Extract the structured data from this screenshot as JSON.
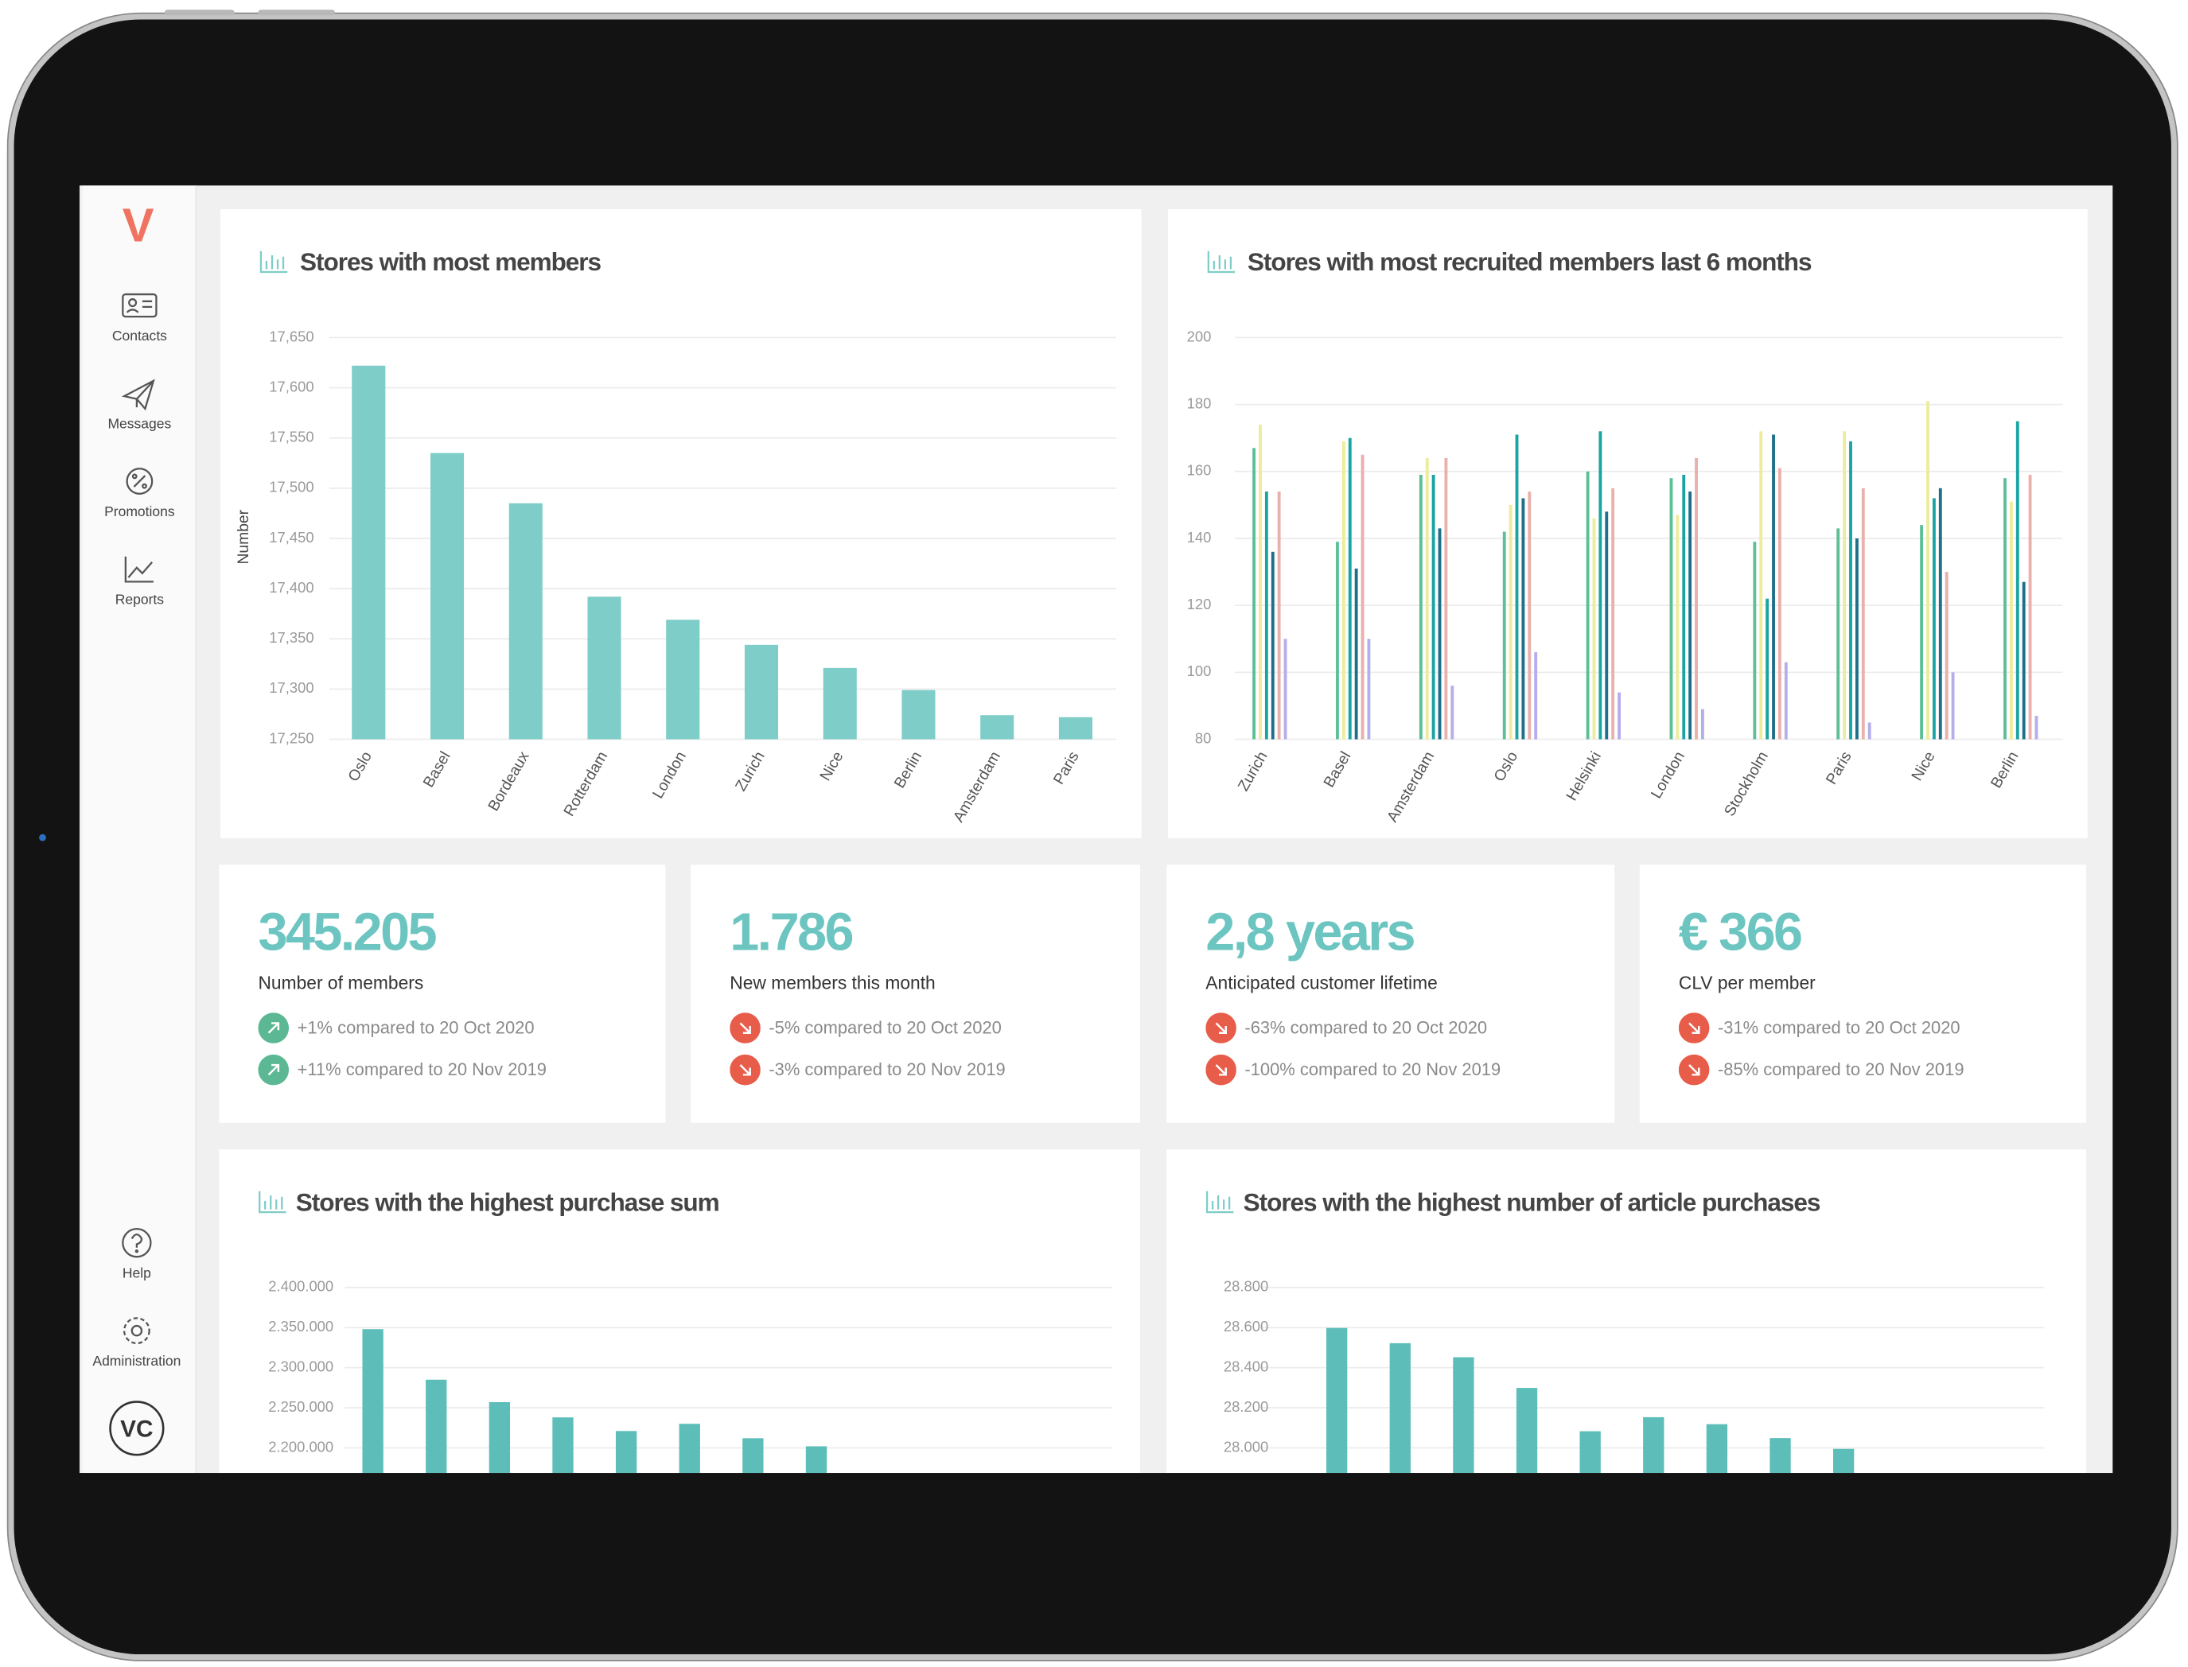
{
  "sidebar": {
    "logo": "V",
    "nav": [
      "Contacts",
      "Messages",
      "Promotions",
      "Reports"
    ],
    "bottom": [
      "Help",
      "Administration"
    ],
    "avatar": "VC"
  },
  "kpis": [
    {
      "value": "345.205",
      "label": "Number of members",
      "trends": [
        {
          "direction": "up",
          "text": "+1% compared to 20 Oct 2020"
        },
        {
          "direction": "up",
          "text": "+11% compared to 20 Nov 2019"
        }
      ]
    },
    {
      "value": "1.786",
      "label": "New members this month",
      "trends": [
        {
          "direction": "down",
          "text": "-5% compared to 20 Oct 2020"
        },
        {
          "direction": "down",
          "text": "-3% compared to 20 Nov 2019"
        }
      ]
    },
    {
      "value": "2,8 years",
      "label": "Anticipated customer lifetime",
      "trends": [
        {
          "direction": "down",
          "text": "-63% compared to 20 Oct 2020"
        },
        {
          "direction": "down",
          "text": "-100% compared to 20 Nov 2019"
        }
      ]
    },
    {
      "value": "€ 366",
      "label": "CLV per member",
      "trends": [
        {
          "direction": "down",
          "text": "-31% compared to 20 Oct 2020"
        },
        {
          "direction": "down",
          "text": "-85% compared to 20 Nov 2019"
        }
      ]
    }
  ],
  "chart_data": [
    {
      "type": "bar",
      "title": "Stores with most members",
      "y_label": "Number",
      "categories": [
        "Oslo",
        "Basel",
        "Bordeaux",
        "Rotterdam",
        "London",
        "Zurich",
        "Nice",
        "Berlin",
        "Amsterdam",
        "Paris"
      ],
      "values": [
        17622,
        17535,
        17485,
        17392,
        17369,
        17344,
        17321,
        17299,
        17274,
        17272
      ],
      "color": "#7ecdc8",
      "ylim": [
        17250,
        17650
      ],
      "yticks": [
        {
          "value": 17250,
          "label": "17,250"
        },
        {
          "value": 17300,
          "label": "17,300"
        },
        {
          "value": 17350,
          "label": "17,350"
        },
        {
          "value": 17400,
          "label": "17,400"
        },
        {
          "value": 17450,
          "label": "17,450"
        },
        {
          "value": 17500,
          "label": "17,500"
        },
        {
          "value": 17550,
          "label": "17,550"
        },
        {
          "value": 17600,
          "label": "17,600"
        },
        {
          "value": 17650,
          "label": "17,650"
        }
      ],
      "grid": true
    },
    {
      "type": "grouped_bar",
      "title": "Stores with most recruited members last 6 months",
      "categories": [
        "Zurich",
        "Basel",
        "Amsterdam",
        "Oslo",
        "Helsinki",
        "London",
        "Stockholm",
        "Paris",
        "Nice",
        "Berlin"
      ],
      "series": [
        {
          "color": "#5dbf96",
          "values": [
            167,
            139,
            159,
            142,
            160,
            158,
            139,
            143,
            144,
            158
          ]
        },
        {
          "color": "#ecec9c",
          "values": [
            174,
            169,
            164,
            150,
            146,
            147,
            172,
            172,
            181,
            151
          ]
        },
        {
          "color": "#1aa3a3",
          "values": [
            154,
            170,
            159,
            171,
            172,
            159,
            122,
            169,
            152,
            175
          ]
        },
        {
          "color": "#1d6f8a",
          "values": [
            136,
            131,
            143,
            152,
            148,
            154,
            171,
            140,
            155,
            127
          ]
        },
        {
          "color": "#eab0ab",
          "values": [
            154,
            165,
            164,
            154,
            155,
            164,
            161,
            155,
            130,
            159
          ]
        },
        {
          "color": "#b4aeec",
          "values": [
            110,
            110,
            96,
            106,
            94,
            89,
            103,
            85,
            100,
            87
          ]
        }
      ],
      "ylim": [
        80,
        200
      ],
      "yticks": [
        80,
        100,
        120,
        140,
        160,
        180,
        200
      ],
      "grid": true
    },
    {
      "type": "bar",
      "title": "Stores with the highest purchase sum",
      "values": [
        2348000,
        2285000,
        2257000,
        2238000,
        2221000,
        2230000,
        2212000,
        2202000
      ],
      "color": "#5cbdb9",
      "ylim": [
        2150000,
        2400000
      ],
      "yticks": [
        {
          "value": 2200000,
          "label": "2.200.000"
        },
        {
          "value": 2250000,
          "label": "2.250.000"
        },
        {
          "value": 2300000,
          "label": "2.300.000"
        },
        {
          "value": 2350000,
          "label": "2.350.000"
        },
        {
          "value": 2400000,
          "label": "2.400.000"
        }
      ],
      "grid": true
    },
    {
      "type": "bar",
      "title": "Stores with the highest number of article purchases",
      "values": [
        28598,
        28522,
        28452,
        28299,
        28083,
        28153,
        28118,
        28049,
        27995
      ],
      "color": "#5cbdb9",
      "ylim": [
        27800,
        28800
      ],
      "yticks": [
        {
          "value": 28000,
          "label": "28.000"
        },
        {
          "value": 28200,
          "label": "28.200"
        },
        {
          "value": 28400,
          "label": "28.400"
        },
        {
          "value": 28600,
          "label": "28.600"
        },
        {
          "value": 28800,
          "label": "28.800"
        }
      ],
      "grid": true
    }
  ]
}
